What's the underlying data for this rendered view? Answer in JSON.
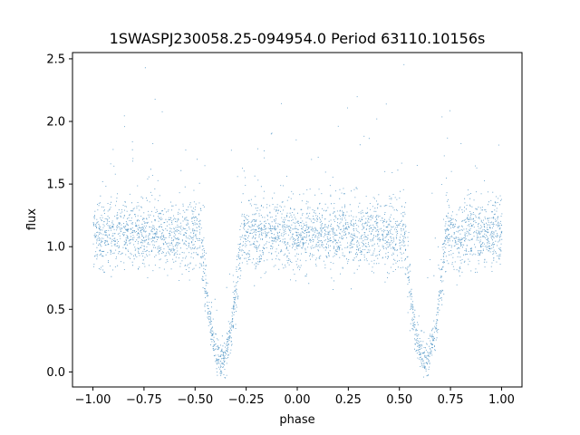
{
  "chart_data": {
    "type": "scatter",
    "title": "1SWASPJ230058.25-094954.0 Period 63110.10156s",
    "xlabel": "phase",
    "ylabel": "flux",
    "xlim": [
      -1.1,
      1.1
    ],
    "ylim": [
      -0.12,
      2.55
    ],
    "x_ticks": [
      -1.0,
      -0.75,
      -0.5,
      -0.25,
      0.0,
      0.25,
      0.5,
      0.75,
      1.0
    ],
    "x_tick_labels": [
      "−1.00",
      "−0.75",
      "−0.50",
      "−0.25",
      "0.00",
      "0.25",
      "0.50",
      "0.75",
      "1.00"
    ],
    "y_ticks": [
      0.0,
      0.5,
      1.0,
      1.5,
      2.0,
      2.5
    ],
    "y_tick_labels": [
      "0.0",
      "0.5",
      "1.0",
      "1.5",
      "2.0",
      "2.5"
    ],
    "grid": false,
    "legend": false,
    "marker_color": "#1f77b4",
    "series": [
      {
        "phase_range": [
          -1.0,
          1.0
        ],
        "baseline_flux": 1.1,
        "baseline_scatter": 0.13,
        "eclipses": [
          {
            "center_phase": -0.375,
            "min_flux": 0.1,
            "half_width": 0.1
          },
          {
            "center_phase": 0.625,
            "min_flux": 0.1,
            "half_width": 0.1
          }
        ],
        "point_count": 9000
      }
    ]
  }
}
